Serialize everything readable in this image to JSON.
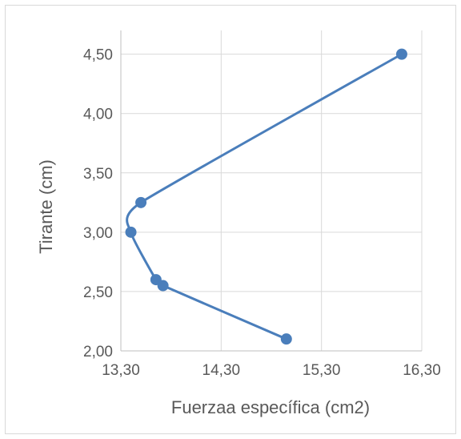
{
  "chart_data": {
    "type": "scatter",
    "xlabel": "Fuerzaa específica (cm2)",
    "ylabel": "Tirante (cm)",
    "xlim": [
      13.3,
      16.3
    ],
    "ylim": [
      2.0,
      4.7
    ],
    "xticks": [
      13.3,
      14.3,
      15.3,
      16.3
    ],
    "xtick_labels": [
      "13,30",
      "14,30",
      "15,30",
      "16,30"
    ],
    "yticks": [
      2.0,
      2.5,
      3.0,
      3.5,
      4.0,
      4.5
    ],
    "ytick_labels": [
      "2,00",
      "2,50",
      "3,00",
      "3,50",
      "4,00",
      "4,50"
    ],
    "grid": "major gridlines on both axes",
    "series": [
      {
        "color": "#4a7ebb",
        "points": [
          {
            "x": 16.1,
            "y": 4.5
          },
          {
            "x": 13.5,
            "y": 3.25
          },
          {
            "x": 13.4,
            "y": 3.0
          },
          {
            "x": 13.65,
            "y": 2.6
          },
          {
            "x": 13.72,
            "y": 2.55
          },
          {
            "x": 14.95,
            "y": 2.1
          }
        ]
      }
    ]
  }
}
